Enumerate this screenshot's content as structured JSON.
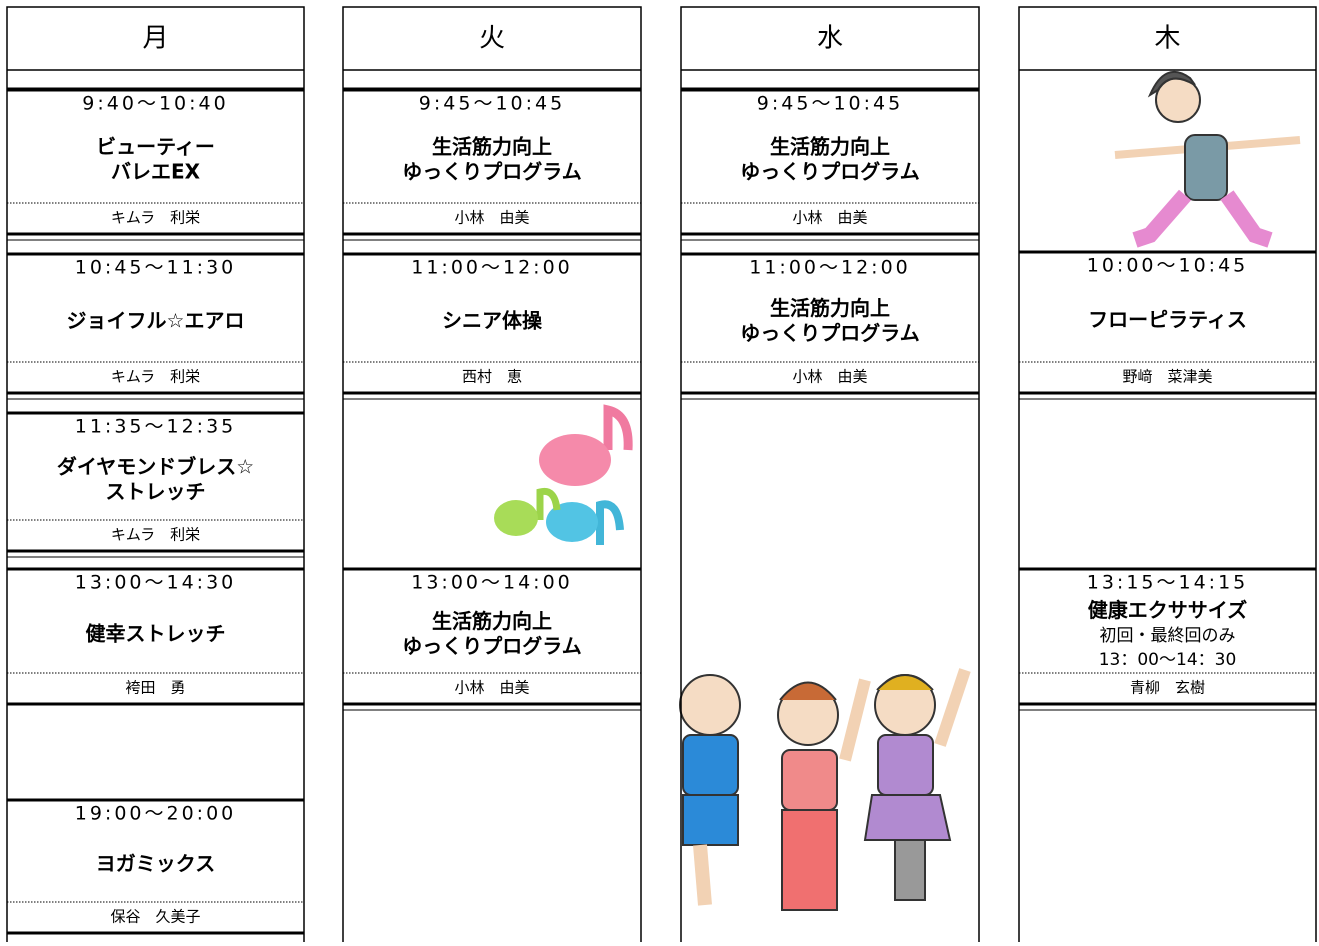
{
  "days": [
    {
      "name": "月",
      "classes": [
        {
          "time": "9:40～10:40",
          "title": [
            "ビューティー",
            "バレエEX"
          ],
          "instructor": "キムラ　利栄"
        },
        {
          "time": "10:45～11:30",
          "title": [
            "ジョイフル☆エアロ"
          ],
          "instructor": "キムラ　利栄"
        },
        {
          "time": "11:35～12:35",
          "title": [
            "ダイヤモンドブレス☆",
            "ストレッチ"
          ],
          "instructor": "キムラ　利栄"
        },
        {
          "time": "13:00～14:30",
          "title": [
            "健幸ストレッチ"
          ],
          "instructor": "袴田　勇"
        },
        {
          "time": "19:00～20:00",
          "title": [
            "ヨガミックス"
          ],
          "instructor": "保谷　久美子"
        }
      ]
    },
    {
      "name": "火",
      "classes": [
        {
          "time": "9:45～10:45",
          "title": [
            "生活筋力向上",
            "ゆっくりプログラム"
          ],
          "instructor": "小林　由美"
        },
        {
          "time": "11:00～12:00",
          "title": [
            "シニア体操"
          ],
          "instructor": "西村　恵"
        },
        {
          "time": "13:00～14:00",
          "title": [
            "生活筋力向上",
            "ゆっくりプログラム"
          ],
          "instructor": "小林　由美"
        }
      ]
    },
    {
      "name": "水",
      "classes": [
        {
          "time": "9:45～10:45",
          "title": [
            "生活筋力向上",
            "ゆっくりプログラム"
          ],
          "instructor": "小林　由美"
        },
        {
          "time": "11:00～12:00",
          "title": [
            "生活筋力向上",
            "ゆっくりプログラム"
          ],
          "instructor": "小林　由美"
        }
      ]
    },
    {
      "name": "木",
      "classes": [
        {
          "time": "10:00～10:45",
          "title": [
            "フローピラティス"
          ],
          "instructor": "野﨑　菜津美"
        },
        {
          "time": "13:15～14:15",
          "title": [
            "健康エクササイズ"
          ],
          "note": [
            "初回・最終回のみ",
            "13：00～14：30"
          ],
          "instructor": "青柳　玄樹"
        }
      ]
    }
  ]
}
